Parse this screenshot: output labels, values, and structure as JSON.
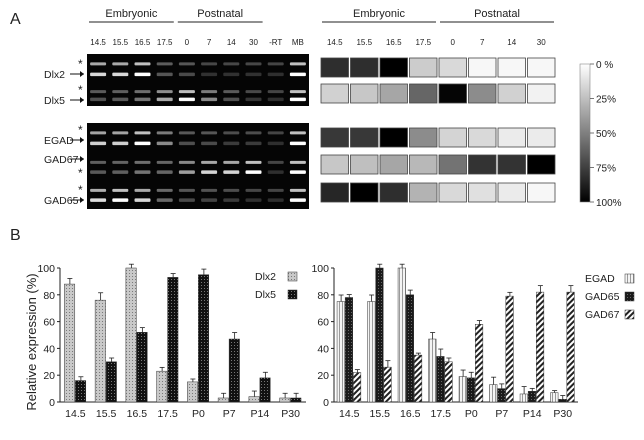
{
  "panel_a": {
    "label": "A",
    "gel": {
      "group_embryonic": "Embryonic",
      "group_postnatal": "Postnatal",
      "lanes": [
        "14.5",
        "15.5",
        "16.5",
        "17.5",
        "0",
        "7",
        "14",
        "30",
        "-RT",
        "MB"
      ],
      "genes": [
        "Dlx2",
        "Dlx5",
        "EGAD",
        "GAD67",
        "GAD65"
      ],
      "asterisk": "*"
    },
    "heatmap": {
      "group_embryonic": "Embryonic",
      "group_postnatal": "Postnatal",
      "columns": [
        "14.5",
        "15.5",
        "16.5",
        "17.5",
        "0",
        "7",
        "14",
        "30"
      ],
      "rows": [
        {
          "gene": "Dlx2",
          "values": [
            82,
            82,
            100,
            20,
            15,
            3,
            3,
            3
          ]
        },
        {
          "gene": "Dlx5",
          "values": [
            18,
            22,
            35,
            60,
            98,
            45,
            18,
            5
          ]
        },
        {
          "gene": "EGAD",
          "values": [
            78,
            78,
            100,
            45,
            17,
            15,
            8,
            8
          ]
        },
        {
          "gene": "GAD67",
          "values": [
            22,
            25,
            35,
            28,
            55,
            80,
            80,
            100
          ]
        },
        {
          "gene": "GAD65",
          "values": [
            85,
            100,
            82,
            30,
            15,
            12,
            8,
            3
          ]
        }
      ],
      "scale_labels": [
        "0 %",
        "25%",
        "50%",
        "75%",
        "100%"
      ]
    }
  },
  "panel_b": {
    "label": "B",
    "ylabel": "Relative expression (%)",
    "left_chart": {
      "categories": [
        "14.5",
        "15.5",
        "16.5",
        "17.5",
        "P0",
        "P7",
        "P14",
        "P30"
      ],
      "yticks": [
        "0",
        "20",
        "40",
        "60",
        "80",
        "100"
      ],
      "series": [
        {
          "name": "Dlx2",
          "values": [
            88,
            76,
            100,
            23,
            15,
            3,
            4,
            3
          ]
        },
        {
          "name": "Dlx5",
          "values": [
            16,
            30,
            52,
            93,
            95,
            47,
            18,
            3
          ]
        }
      ]
    },
    "right_chart": {
      "categories": [
        "14.5",
        "15.5",
        "16.5",
        "17.5",
        "P0",
        "P7",
        "P14",
        "P30"
      ],
      "yticks": [
        "0",
        "20",
        "40",
        "60",
        "80",
        "100"
      ],
      "series": [
        {
          "name": "EGAD",
          "values": [
            75,
            75,
            100,
            47,
            19,
            13,
            6,
            7
          ]
        },
        {
          "name": "GAD65",
          "values": [
            78,
            100,
            80,
            34,
            18,
            10,
            8,
            2
          ]
        },
        {
          "name": "GAD67",
          "values": [
            22,
            26,
            35,
            30,
            58,
            79,
            82,
            82
          ]
        }
      ]
    }
  },
  "chart_data": [
    {
      "type": "heatmap",
      "title": "",
      "x": [
        "14.5",
        "15.5",
        "16.5",
        "17.5",
        "0",
        "7",
        "14",
        "30"
      ],
      "y": [
        "Dlx2",
        "Dlx5",
        "EGAD",
        "GAD67",
        "GAD65"
      ],
      "values": [
        [
          82,
          82,
          100,
          20,
          15,
          3,
          3,
          3
        ],
        [
          18,
          22,
          35,
          60,
          98,
          45,
          18,
          5
        ],
        [
          78,
          78,
          100,
          45,
          17,
          15,
          8,
          8
        ],
        [
          22,
          25,
          35,
          28,
          55,
          80,
          80,
          100
        ],
        [
          85,
          100,
          82,
          30,
          15,
          12,
          8,
          3
        ]
      ],
      "legend": [
        "0 %",
        "25%",
        "50%",
        "75%",
        "100%"
      ]
    },
    {
      "type": "bar",
      "title": "",
      "categories": [
        "14.5",
        "15.5",
        "16.5",
        "17.5",
        "P0",
        "P7",
        "P14",
        "P30"
      ],
      "series": [
        {
          "name": "Dlx2",
          "values": [
            88,
            76,
            100,
            23,
            15,
            3,
            4,
            3
          ]
        },
        {
          "name": "Dlx5",
          "values": [
            16,
            30,
            52,
            93,
            95,
            47,
            18,
            3
          ]
        }
      ],
      "xlabel": "",
      "ylabel": "Relative expression (%)",
      "ylim": [
        0,
        100
      ],
      "legend": "top-right"
    },
    {
      "type": "bar",
      "title": "",
      "categories": [
        "14.5",
        "15.5",
        "16.5",
        "17.5",
        "P0",
        "P7",
        "P14",
        "P30"
      ],
      "series": [
        {
          "name": "EGAD",
          "values": [
            75,
            75,
            100,
            47,
            19,
            13,
            6,
            7
          ]
        },
        {
          "name": "GAD65",
          "values": [
            78,
            100,
            80,
            34,
            18,
            10,
            8,
            2
          ]
        },
        {
          "name": "GAD67",
          "values": [
            22,
            26,
            35,
            30,
            58,
            79,
            82,
            82
          ]
        }
      ],
      "xlabel": "",
      "ylabel": "",
      "ylim": [
        0,
        100
      ],
      "legend": "top-right"
    }
  ]
}
